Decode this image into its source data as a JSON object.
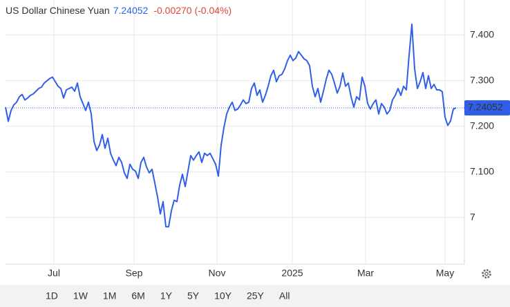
{
  "chart_data": {
    "type": "line",
    "title": "US Dollar Chinese Yuan",
    "price": 7.24052,
    "change": "-0.00270 (-0.04%)",
    "color": "#2f5fe6",
    "price_color": "#2f5fe6",
    "change_color": "#e0453c",
    "grid": true,
    "values": [
      7.242,
      7.211,
      7.235,
      7.247,
      7.253,
      7.265,
      7.27,
      7.258,
      7.262,
      7.268,
      7.271,
      7.277,
      7.283,
      7.286,
      7.295,
      7.3,
      7.305,
      7.308,
      7.298,
      7.288,
      7.283,
      7.262,
      7.28,
      7.283,
      7.286,
      7.277,
      7.295,
      7.265,
      7.25,
      7.235,
      7.253,
      7.227,
      7.167,
      7.147,
      7.159,
      7.182,
      7.152,
      7.174,
      7.141,
      7.126,
      7.114,
      7.132,
      7.121,
      7.098,
      7.086,
      7.117,
      7.106,
      7.102,
      7.086,
      7.121,
      7.132,
      7.111,
      7.098,
      7.106,
      7.076,
      7.045,
      7.008,
      7.035,
      6.98,
      6.98,
      7.015,
      7.038,
      7.035,
      7.071,
      7.095,
      7.068,
      7.102,
      7.136,
      7.126,
      7.136,
      7.144,
      7.121,
      7.141,
      7.136,
      7.141,
      7.129,
      7.117,
      7.091,
      7.159,
      7.197,
      7.227,
      7.242,
      7.253,
      7.235,
      7.238,
      7.247,
      7.258,
      7.25,
      7.253,
      7.283,
      7.295,
      7.268,
      7.28,
      7.253,
      7.268,
      7.288,
      7.311,
      7.323,
      7.298,
      7.311,
      7.314,
      7.326,
      7.344,
      7.356,
      7.344,
      7.35,
      7.364,
      7.356,
      7.348,
      7.344,
      7.333,
      7.288,
      7.265,
      7.283,
      7.253,
      7.277,
      7.303,
      7.323,
      7.314,
      7.295,
      7.273,
      7.288,
      7.317,
      7.288,
      7.295,
      7.265,
      7.242,
      7.265,
      7.258,
      7.308,
      7.288,
      7.25,
      7.238,
      7.25,
      7.258,
      7.227,
      7.25,
      7.242,
      7.227,
      7.235,
      7.258,
      7.268,
      7.283,
      7.268,
      7.288,
      7.28,
      7.356,
      7.424,
      7.326,
      7.283,
      7.298,
      7.318,
      7.283,
      7.311,
      7.283,
      7.292,
      7.28,
      7.28,
      7.276,
      7.22,
      7.202,
      7.212,
      7.238,
      7.24052
    ],
    "xlim": [
      0,
      166
    ],
    "xticks": [
      {
        "value": 17.5,
        "label": "Jul"
      },
      {
        "value": 46.5,
        "label": "Sep"
      },
      {
        "value": 76.5,
        "label": "Nov"
      },
      {
        "value": 103.75,
        "label": "2025"
      },
      {
        "value": 130.25,
        "label": "Mar"
      },
      {
        "value": 159,
        "label": "May"
      }
    ],
    "ylim": [
      6.898,
      7.477
    ],
    "yticks": [
      7,
      {
        "value": 7.1,
        "label": "7.100"
      },
      {
        "value": 7.2,
        "label": "7.200"
      },
      {
        "value": 7.3,
        "label": "7.300"
      },
      {
        "value": 7.4,
        "label": "7.400"
      }
    ],
    "range_buttons": [
      "1D",
      "1W",
      "1M",
      "6M",
      "1Y",
      "5Y",
      "10Y",
      "25Y",
      "All"
    ],
    "active_range": "1Y"
  }
}
